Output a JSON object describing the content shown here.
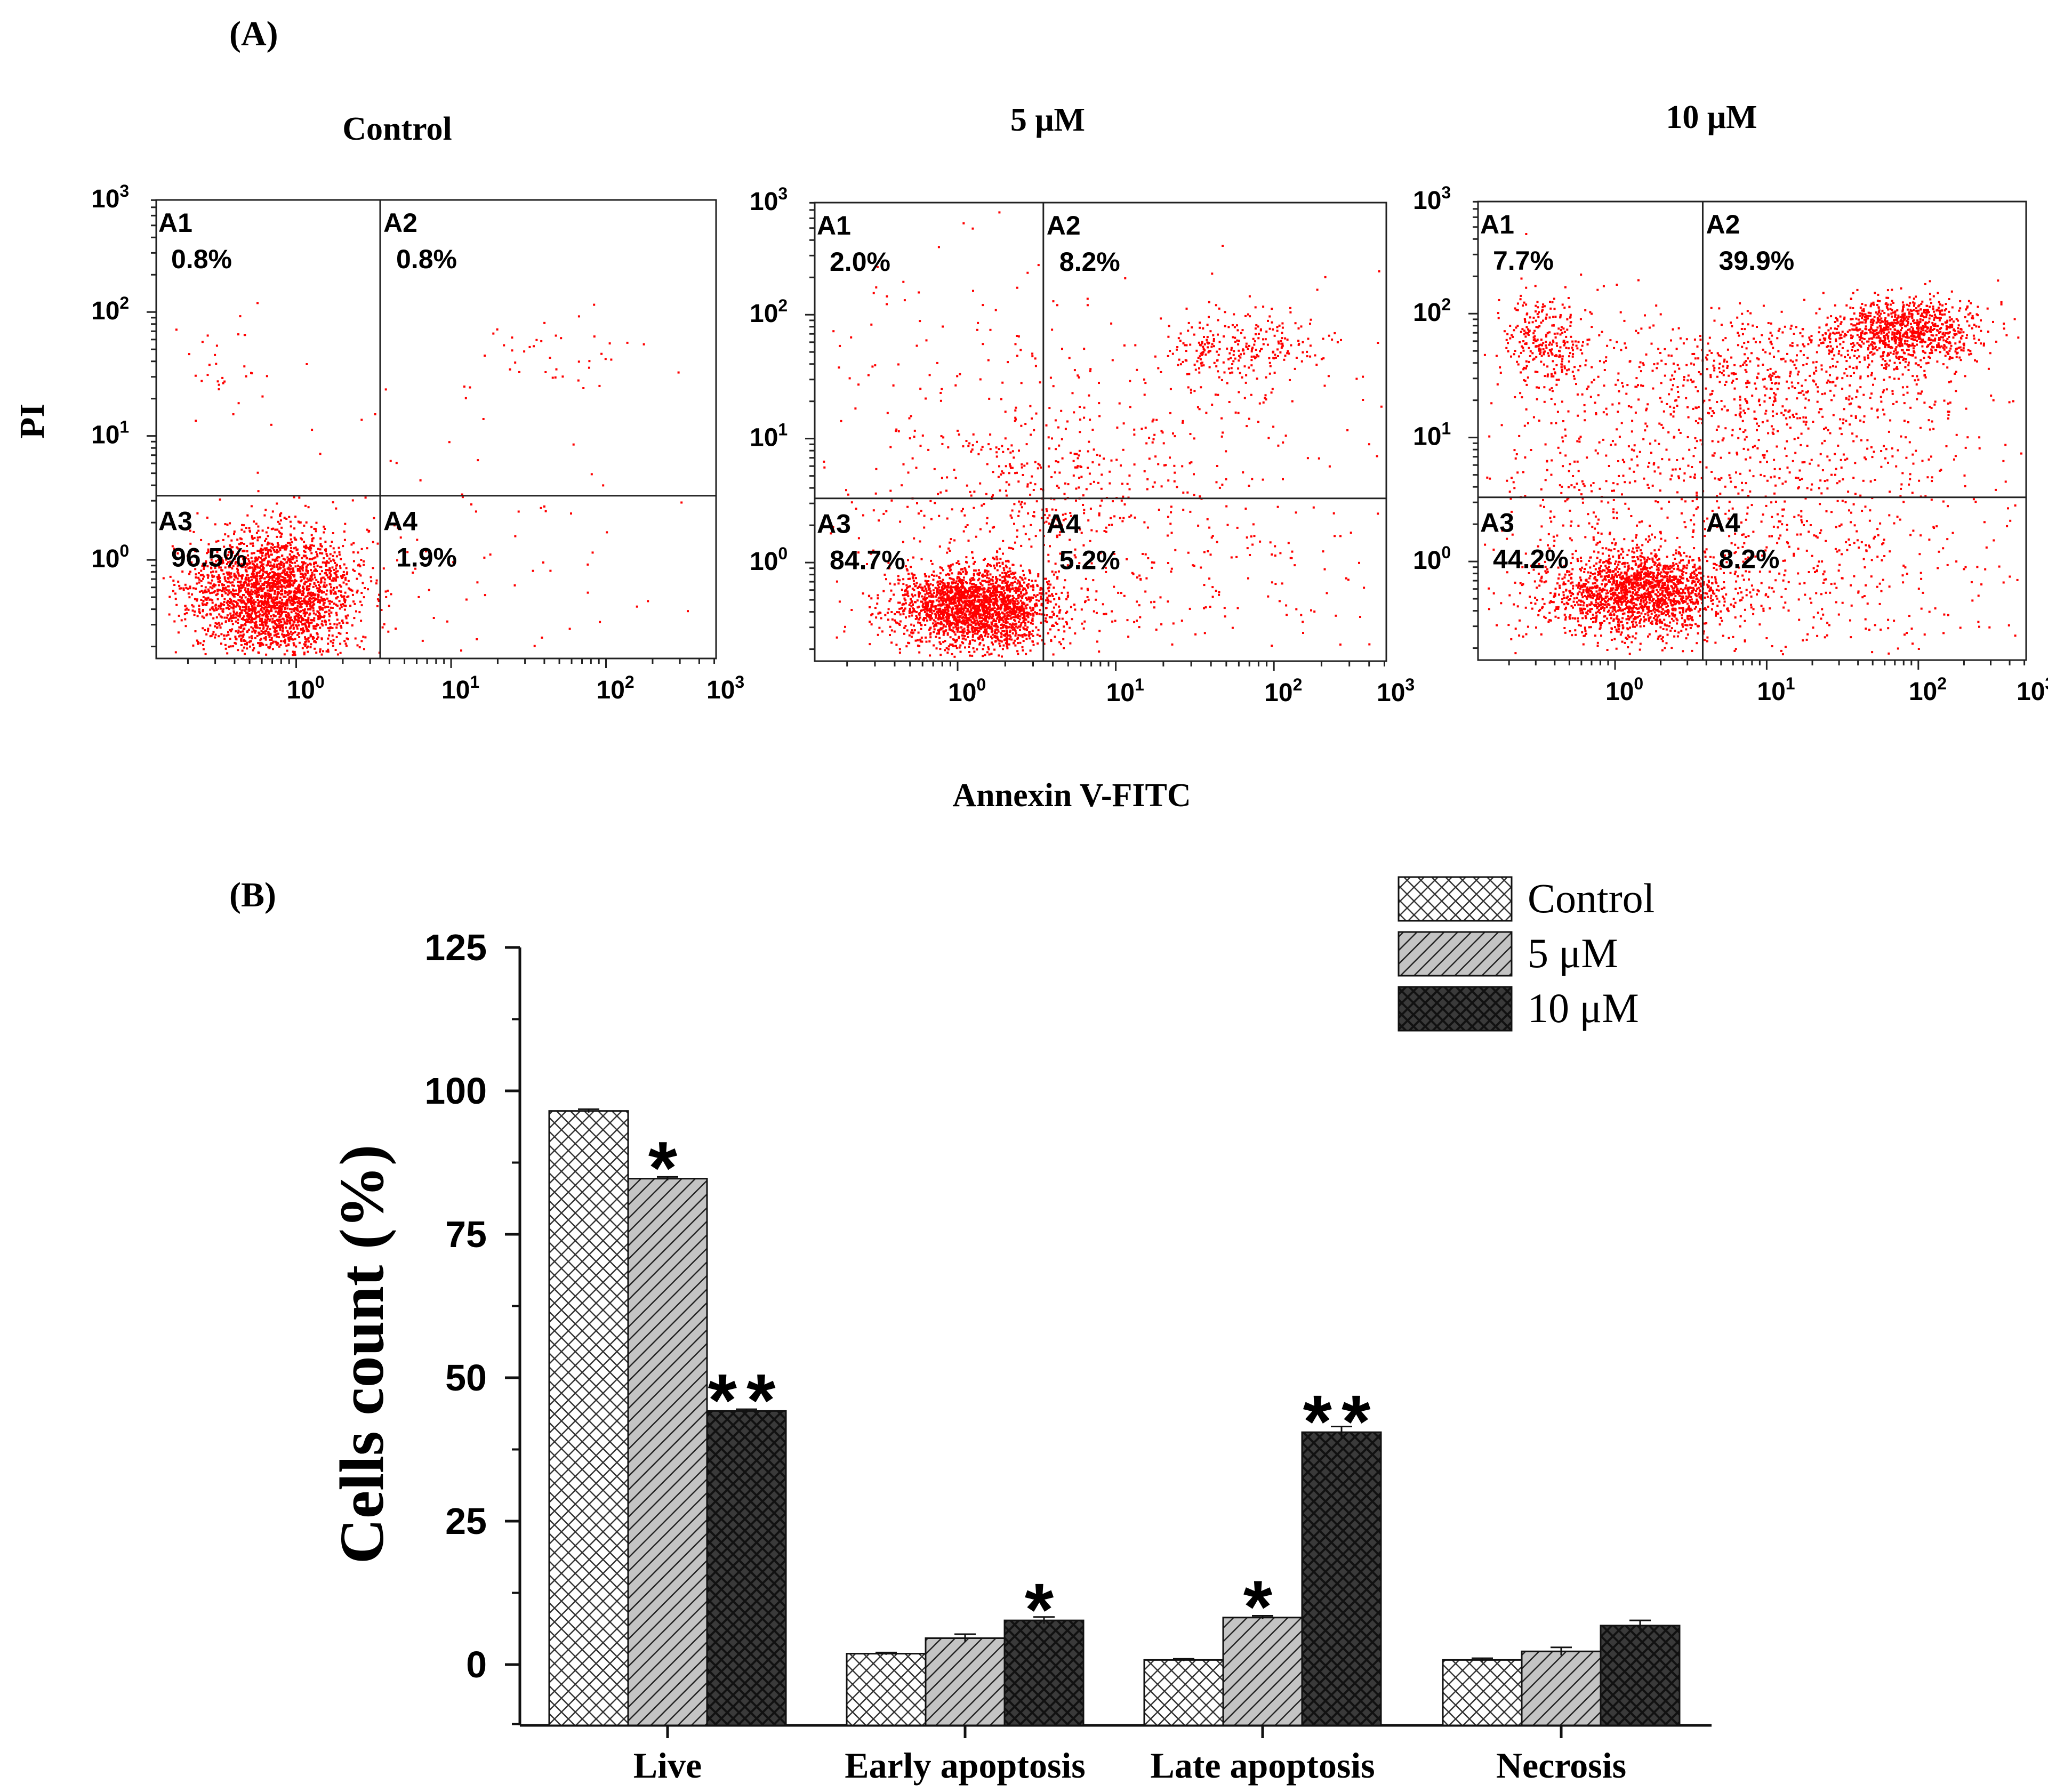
{
  "panel_a": {
    "label": "(A)",
    "x_axis_label": "Annexin V-FITC",
    "y_axis_label": "PI",
    "tick_base": "10",
    "x_tick_exponents": [
      "0",
      "1",
      "2",
      "3"
    ],
    "y_tick_exponents": [
      "0",
      "1",
      "2",
      "3"
    ],
    "point_color": "#ff0000",
    "plots": [
      {
        "title": "Control",
        "quadrants": [
          {
            "name": "A1",
            "value": "0.8%"
          },
          {
            "name": "A2",
            "value": "0.8%"
          },
          {
            "name": "A3",
            "value": "96.5%"
          },
          {
            "name": "A4",
            "value": "1.9%"
          }
        ]
      },
      {
        "title": "5 μM",
        "quadrants": [
          {
            "name": "A1",
            "value": "2.0%"
          },
          {
            "name": "A2",
            "value": "8.2%"
          },
          {
            "name": "A3",
            "value": "84.7%"
          },
          {
            "name": "A4",
            "value": "5.2%"
          }
        ]
      },
      {
        "title": "10 μM",
        "quadrants": [
          {
            "name": "A1",
            "value": "7.7%"
          },
          {
            "name": "A2",
            "value": "39.9%"
          },
          {
            "name": "A3",
            "value": "44.2%"
          },
          {
            "name": "A4",
            "value": "8.2%"
          }
        ]
      }
    ]
  },
  "chart_data": {
    "label": "(B)",
    "type": "bar",
    "title": "",
    "xlabel": "",
    "ylabel": "Cells count (%)",
    "ylim": [
      -10,
      125
    ],
    "yticks": [
      0,
      25,
      50,
      75,
      100,
      125
    ],
    "categories": [
      "Live",
      "Early apoptosis",
      "Late apoptosis",
      "Necrosis"
    ],
    "legend_position": "top-right",
    "series": [
      {
        "name": "Control",
        "fill": "crosshatch",
        "color": "#ffffff",
        "values": [
          96.5,
          1.9,
          0.8,
          0.8
        ],
        "errors": [
          0.3,
          0.2,
          0.2,
          0.3
        ],
        "significance": [
          "",
          "",
          "",
          ""
        ]
      },
      {
        "name": "5 μM",
        "fill": "diagonal",
        "color": "#bdbdbd",
        "values": [
          84.7,
          4.6,
          8.2,
          2.3
        ],
        "errors": [
          0.3,
          0.7,
          0.3,
          0.7
        ],
        "significance": [
          "*",
          "",
          "*",
          ""
        ]
      },
      {
        "name": "10 μM",
        "fill": "dark-crosshatch",
        "color": "#333333",
        "values": [
          44.2,
          7.7,
          40.5,
          6.8
        ],
        "errors": [
          0.3,
          0.6,
          1.0,
          0.9
        ],
        "significance": [
          "**",
          "*",
          "**",
          ""
        ]
      }
    ]
  }
}
